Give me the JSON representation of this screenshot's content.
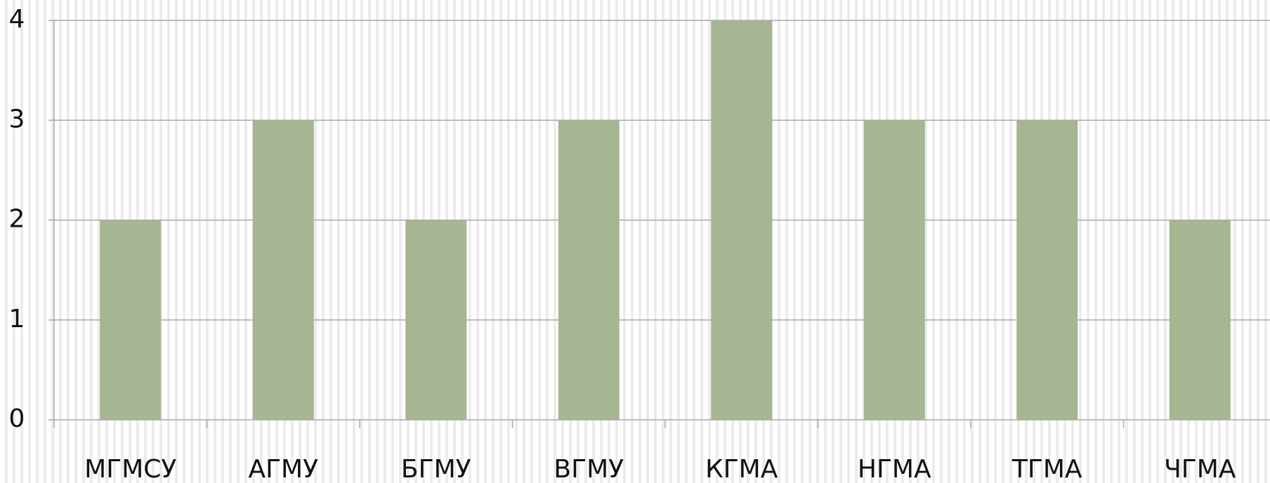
{
  "chart_data": {
    "type": "bar",
    "categories": [
      "МГМСУ",
      "АГМУ",
      "БГМУ",
      "ВГМУ",
      "КГМА",
      "НГМА",
      "ТГМА",
      "ЧГМА"
    ],
    "values": [
      2,
      3,
      2,
      3,
      4,
      3,
      3,
      2
    ],
    "color": "#a6b592",
    "ylim": [
      0,
      4
    ],
    "yticks": [
      0,
      1,
      2,
      3,
      4
    ],
    "grid": true
  }
}
